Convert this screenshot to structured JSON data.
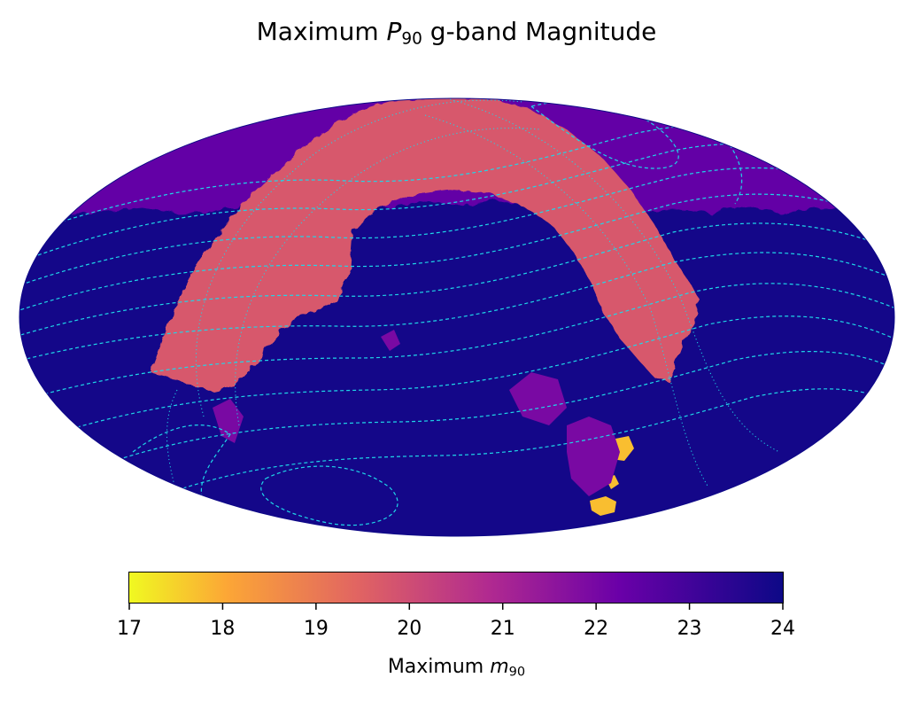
{
  "title": {
    "prefix": "Maximum ",
    "symbol": "P",
    "subscript": "90",
    "suffix": " g-band Magnitude"
  },
  "colorbar": {
    "label_prefix": "Maximum ",
    "label_symbol": "m",
    "label_subscript": "90",
    "ticks": [
      "17",
      "18",
      "19",
      "20",
      "21",
      "22",
      "23",
      "24"
    ],
    "range": [
      17,
      24
    ],
    "colormap": "plasma",
    "colormap_reversed": true,
    "colors": [
      "#f0f921",
      "#fca636",
      "#e16462",
      "#b12a90",
      "#6a00a8",
      "#0d0887"
    ]
  },
  "chart_data": {
    "type": "heatmap",
    "projection": "mollweide",
    "title": "Maximum P90 g-band Magnitude",
    "value_label": "Maximum m90",
    "vmin": 17,
    "vmax": 24,
    "regions": [
      {
        "name": "background",
        "value": 23.9
      },
      {
        "name": "northern-cap",
        "value": 22.7
      },
      {
        "name": "arc",
        "value": 20.1
      },
      {
        "name": "bright-patches",
        "value": 18.0
      }
    ],
    "overlay_lines": {
      "dashed_color": "#1fd6e8",
      "dotted_color": "#1fd6e8"
    }
  }
}
